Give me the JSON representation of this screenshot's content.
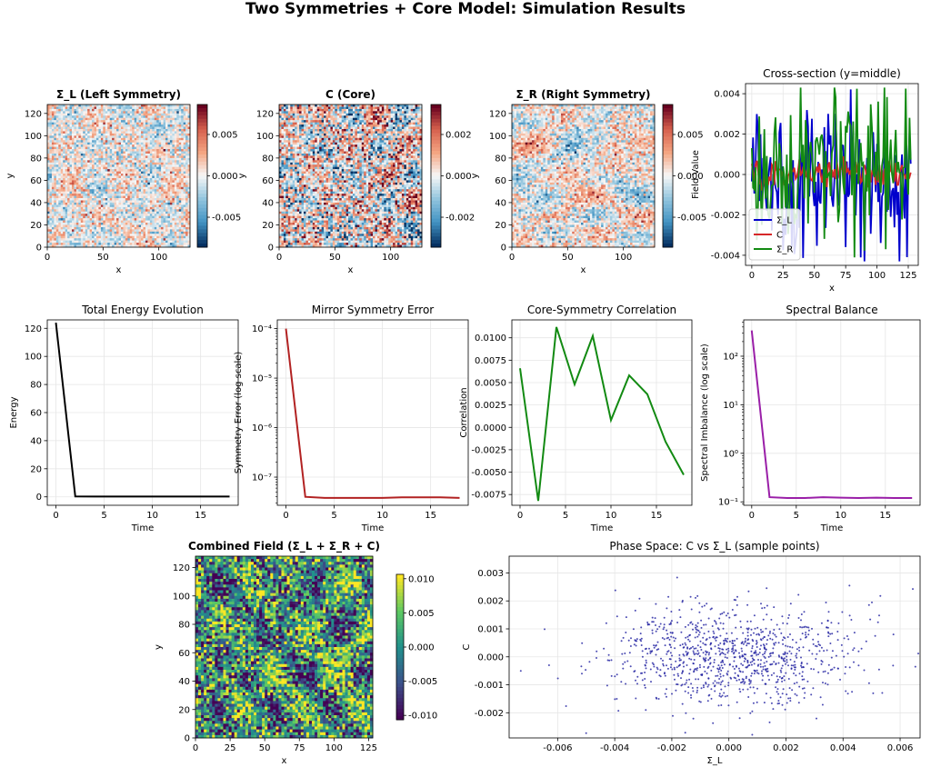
{
  "figure": {
    "title": "Two Symmetries + Core Model: Simulation Results"
  },
  "colors": {
    "blue": "#0000cc",
    "red": "#d62728",
    "green": "#128a12",
    "black": "#000000",
    "darkred": "#b22222",
    "purple": "#9a1fa8",
    "scatter": "#1f1fa0"
  },
  "chart_data": [
    {
      "id": "sigma-l-map",
      "type": "heatmap",
      "title": "Σ_L (Left Symmetry)",
      "title_bold": true,
      "xlabel": "x",
      "ylabel": "y",
      "xticks": [
        "0",
        "50",
        "100"
      ],
      "yticks": [
        "0",
        "20",
        "40",
        "60",
        "80",
        "100",
        "120"
      ],
      "colormap": "RdBu_r",
      "colorbar_ticks": [
        "0.005",
        "0.000",
        "-0.005"
      ],
      "amplitude": 0.25,
      "seed": 11
    },
    {
      "id": "core-map",
      "type": "heatmap",
      "title": "C (Core)",
      "title_bold": true,
      "xlabel": "x",
      "ylabel": "y",
      "xticks": [
        "0",
        "50",
        "100"
      ],
      "yticks": [
        "0",
        "20",
        "40",
        "60",
        "80",
        "100",
        "120"
      ],
      "colormap": "RdBu_r",
      "colorbar_ticks": [
        "0.002",
        "0.000",
        "-0.002"
      ],
      "amplitude": 0.45,
      "seed": 23
    },
    {
      "id": "sigma-r-map",
      "type": "heatmap",
      "title": "Σ_R (Right Symmetry)",
      "title_bold": true,
      "xlabel": "x",
      "ylabel": "y",
      "xticks": [
        "0",
        "50",
        "100"
      ],
      "yticks": [
        "0",
        "20",
        "40",
        "60",
        "80",
        "100",
        "120"
      ],
      "colormap": "RdBu_r",
      "colorbar_ticks": [
        "0.005",
        "0.000",
        "-0.005"
      ],
      "amplitude": 0.25,
      "seed": 37
    },
    {
      "id": "cross-section",
      "type": "line",
      "title": "Cross-section (y=middle)",
      "xlabel": "x",
      "ylabel": "Field Value",
      "xlim": [
        -5,
        133
      ],
      "ylim": [
        -0.0045,
        0.0045
      ],
      "xticks": [
        "0",
        "25",
        "50",
        "75",
        "100",
        "125"
      ],
      "yticks": [
        "0.004",
        "0.002",
        "0.000",
        "-0.002",
        "-0.004"
      ],
      "legend": "lower-left",
      "series": [
        {
          "name": "Σ_L",
          "color": "#0000cc",
          "amp": 0.0043,
          "seed": 5
        },
        {
          "name": "C",
          "color": "#d62728",
          "amp": 0.0009,
          "seed": 9
        },
        {
          "name": "Σ_R",
          "color": "#128a12",
          "amp": 0.0043,
          "seed": 17
        }
      ]
    },
    {
      "id": "energy",
      "type": "line",
      "title": "Total Energy Evolution",
      "xlabel": "Time",
      "ylabel": "Energy",
      "xlim": [
        -0.9,
        18.9
      ],
      "ylim": [
        -6,
        126
      ],
      "xticks": [
        "0",
        "5",
        "10",
        "15"
      ],
      "yticks": [
        "0",
        "20",
        "40",
        "60",
        "80",
        "100",
        "120"
      ],
      "series": [
        {
          "name": "Energy",
          "color": "#000000",
          "x": [
            0,
            2,
            4,
            6,
            8,
            10,
            12,
            14,
            16,
            18
          ],
          "y": [
            124,
            0.3,
            0.2,
            0.2,
            0.2,
            0.2,
            0.2,
            0.2,
            0.2,
            0.2
          ]
        }
      ]
    },
    {
      "id": "mirror-error",
      "type": "line",
      "title": "Mirror Symmetry Error",
      "xlabel": "Time",
      "ylabel": "Symmetry Error (log scale)",
      "yscale": "log",
      "xlim": [
        -0.9,
        18.9
      ],
      "ylim": [
        2.7e-08,
        0.00015
      ],
      "xticks": [
        "0",
        "5",
        "10",
        "15"
      ],
      "yticks": [
        "10⁻⁴",
        "10⁻⁵",
        "10⁻⁶",
        "10⁻⁷"
      ],
      "series": [
        {
          "name": "Error",
          "color": "#b22222",
          "x": [
            0,
            2,
            4,
            6,
            8,
            10,
            12,
            14,
            16,
            18
          ],
          "y": [
            0.0001,
            4e-08,
            3.8e-08,
            3.8e-08,
            3.8e-08,
            3.8e-08,
            3.9e-08,
            3.9e-08,
            3.9e-08,
            3.8e-08
          ]
        }
      ]
    },
    {
      "id": "correlation",
      "type": "line",
      "title": "Core-Symmetry Correlation",
      "xlabel": "Time",
      "ylabel": "Correlation",
      "xlim": [
        -0.9,
        18.9
      ],
      "ylim": [
        -0.0087,
        0.012
      ],
      "xticks": [
        "0",
        "5",
        "10",
        "15"
      ],
      "yticks": [
        "0.0100",
        "0.0075",
        "0.0050",
        "0.0025",
        "0.0000",
        "-0.0025",
        "-0.0050",
        "-0.0075"
      ],
      "series": [
        {
          "name": "Correlation",
          "color": "#128a12",
          "x": [
            0,
            2,
            4,
            6,
            8,
            10,
            12,
            14,
            16,
            18
          ],
          "y": [
            0.0066,
            -0.0082,
            0.0112,
            0.0048,
            0.0102,
            0.0008,
            0.0058,
            0.0037,
            -0.0016,
            -0.0053
          ]
        }
      ]
    },
    {
      "id": "spectral",
      "type": "line",
      "title": "Spectral Balance",
      "xlabel": "Time",
      "ylabel": "Spectral Imbalance (log scale)",
      "yscale": "log",
      "xlim": [
        -0.9,
        18.9
      ],
      "ylim": [
        0.085,
        560
      ],
      "xticks": [
        "0",
        "5",
        "10",
        "15"
      ],
      "yticks": [
        "10²",
        "10¹",
        "10⁰",
        "10⁻¹"
      ],
      "series": [
        {
          "name": "Imbalance",
          "color": "#9a1fa8",
          "x": [
            0,
            2,
            4,
            6,
            8,
            10,
            12,
            14,
            16,
            18
          ],
          "y": [
            340,
            0.125,
            0.12,
            0.12,
            0.125,
            0.122,
            0.12,
            0.122,
            0.12,
            0.12
          ]
        }
      ]
    },
    {
      "id": "combined",
      "type": "heatmap",
      "title": "Combined Field (Σ_L + Σ_R + C)",
      "title_bold": true,
      "xlabel": "x",
      "ylabel": "y",
      "xticks": [
        "0",
        "25",
        "50",
        "75",
        "100",
        "125"
      ],
      "yticks": [
        "0",
        "20",
        "40",
        "60",
        "80",
        "100",
        "120"
      ],
      "colormap": "viridis",
      "colorbar_ticks": [
        "0.010",
        "0.005",
        "0.000",
        "-0.005",
        "-0.010"
      ],
      "amplitude": 0.3,
      "seed": 51
    },
    {
      "id": "phase-space",
      "type": "scatter",
      "title": "Phase Space: C vs Σ_L (sample points)",
      "xlabel": "Σ_L",
      "ylabel": "C",
      "xlim": [
        -0.0077,
        0.0067
      ],
      "ylim": [
        -0.0029,
        0.0036
      ],
      "xticks": [
        "-0.006",
        "-0.004",
        "-0.002",
        "0.000",
        "0.002",
        "0.004",
        "0.006"
      ],
      "yticks": [
        "0.003",
        "0.002",
        "0.001",
        "0.000",
        "-0.001",
        "-0.002"
      ],
      "n_points": 1000,
      "x_std": 0.0022,
      "y_std": 0.0009,
      "seed": 77
    }
  ]
}
